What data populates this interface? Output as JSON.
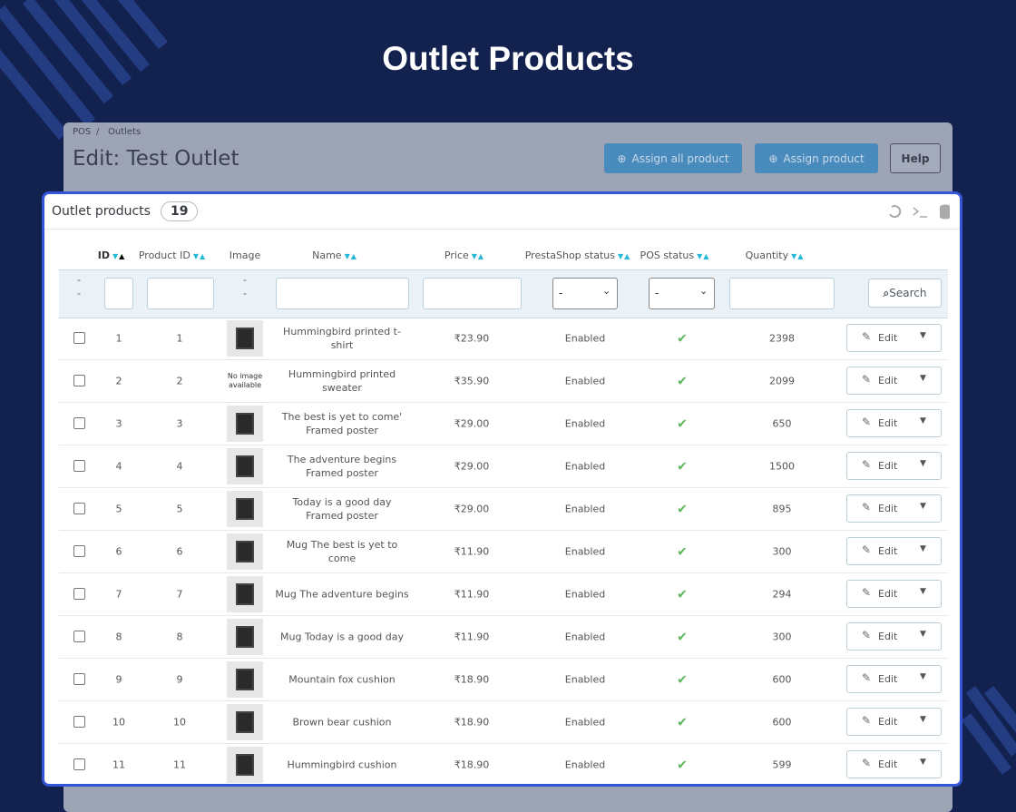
{
  "page_title": "Outlet Products",
  "breadcrumb": [
    "POS",
    "Outlets"
  ],
  "heading": "Edit: Test Outlet",
  "buttons": [
    "Assign all product",
    "Assign product",
    "Help"
  ],
  "panel": {
    "title": "Outlet products",
    "count": 19
  },
  "table": {
    "columns": [
      "ID",
      "Product ID",
      "Image",
      "Name",
      "Price",
      "PrestaShop status",
      "POS status",
      "Quantity"
    ],
    "filter_empty": "--",
    "select_empty": "-",
    "search": "Search",
    "edit": "Edit",
    "rows": [
      {
        "id": 1,
        "product_id": 1,
        "name": "Hummingbird printed t-shirt",
        "price": "₹23.90",
        "status": "Enabled",
        "quantity": 2398
      },
      {
        "id": 2,
        "product_id": 2,
        "image_text": "No image available",
        "name": "Hummingbird printed sweater",
        "price": "₹35.90",
        "status": "Enabled",
        "quantity": 2099
      },
      {
        "id": 3,
        "product_id": 3,
        "name": "The best is yet to come' Framed poster",
        "price": "₹29.00",
        "status": "Enabled",
        "quantity": 650
      },
      {
        "id": 4,
        "product_id": 4,
        "name": "The adventure begins Framed poster",
        "price": "₹29.00",
        "status": "Enabled",
        "quantity": 1500
      },
      {
        "id": 5,
        "product_id": 5,
        "name": "Today is a good day Framed poster",
        "price": "₹29.00",
        "status": "Enabled",
        "quantity": 895
      },
      {
        "id": 6,
        "product_id": 6,
        "name": "Mug The best is yet to come",
        "price": "₹11.90",
        "status": "Enabled",
        "quantity": 300
      },
      {
        "id": 7,
        "product_id": 7,
        "name": "Mug The adventure begins",
        "price": "₹11.90",
        "status": "Enabled",
        "quantity": 294
      },
      {
        "id": 8,
        "product_id": 8,
        "name": "Mug Today is a good day",
        "price": "₹11.90",
        "status": "Enabled",
        "quantity": 300
      },
      {
        "id": 9,
        "product_id": 9,
        "name": "Mountain fox cushion",
        "price": "₹18.90",
        "status": "Enabled",
        "quantity": 600
      },
      {
        "id": 10,
        "product_id": 10,
        "name": "Brown bear cushion",
        "price": "₹18.90",
        "status": "Enabled",
        "quantity": 600
      },
      {
        "id": 11,
        "product_id": 11,
        "name": "Hummingbird cushion",
        "price": "₹18.90",
        "status": "Enabled",
        "quantity": 599
      }
    ]
  }
}
